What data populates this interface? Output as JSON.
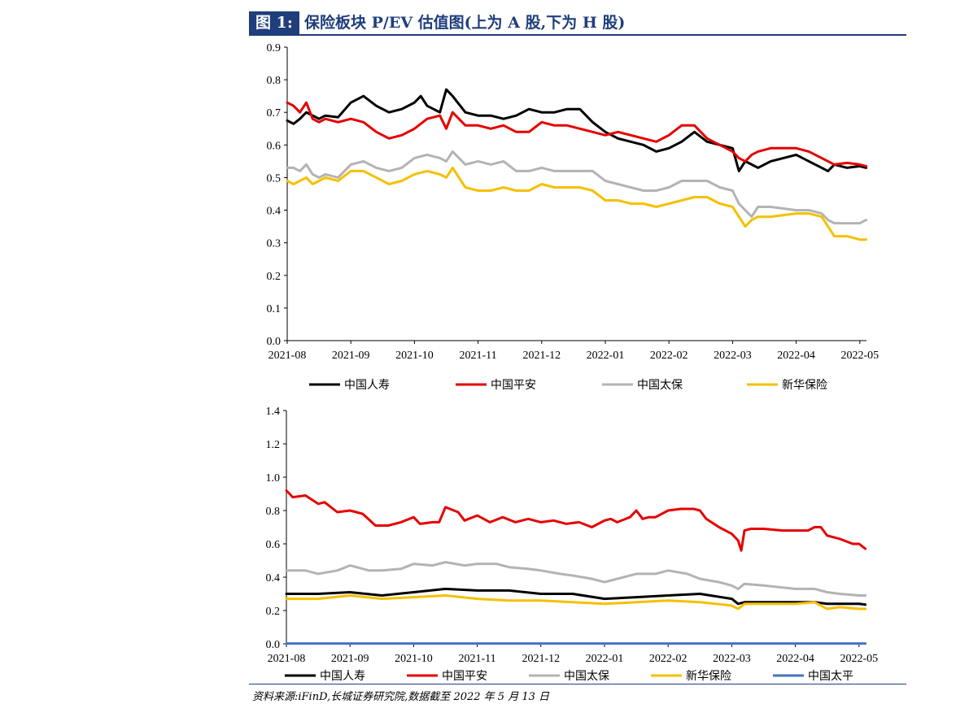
{
  "header": {
    "tag": "图 1:",
    "title": "保险板块 P/EV 估值图(上为 A 股,下为 H 股)"
  },
  "source": "资料来源:iFinD,长城证券研究院,数据截至 2022 年 5 月 13 日",
  "chart_data": [
    {
      "type": "line",
      "title": "",
      "xlabel": "",
      "ylabel": "",
      "x_ticks": [
        "2021-08",
        "2021-09",
        "2021-10",
        "2021-11",
        "2021-12",
        "2022-01",
        "2022-02",
        "2022-03",
        "2022-04",
        "2022-05"
      ],
      "y_ticks": [
        "0.0",
        "0.1",
        "0.2",
        "0.3",
        "0.4",
        "0.5",
        "0.6",
        "0.7",
        "0.8",
        "0.9"
      ],
      "ylim": [
        0,
        0.9
      ],
      "xlim": [
        0,
        9.1
      ],
      "grid": false,
      "legend": "bottom",
      "series": [
        {
          "name": "中国人寿",
          "color": "#000000",
          "x": [
            0,
            0.1,
            0.2,
            0.3,
            0.4,
            0.5,
            0.6,
            0.8,
            1.0,
            1.2,
            1.4,
            1.6,
            1.8,
            2.0,
            2.1,
            2.2,
            2.4,
            2.5,
            2.6,
            2.8,
            3.0,
            3.2,
            3.4,
            3.6,
            3.8,
            4.0,
            4.2,
            4.4,
            4.6,
            4.8,
            5.0,
            5.2,
            5.4,
            5.6,
            5.8,
            6.0,
            6.2,
            6.4,
            6.6,
            6.8,
            7.0,
            7.1,
            7.2,
            7.3,
            7.4,
            7.6,
            7.8,
            8.0,
            8.2,
            8.4,
            8.5,
            8.6,
            8.8,
            9.0,
            9.1
          ],
          "y": [
            0.675,
            0.665,
            0.68,
            0.7,
            0.69,
            0.68,
            0.69,
            0.685,
            0.73,
            0.75,
            0.72,
            0.7,
            0.71,
            0.73,
            0.75,
            0.72,
            0.7,
            0.77,
            0.75,
            0.7,
            0.69,
            0.69,
            0.68,
            0.69,
            0.71,
            0.7,
            0.7,
            0.71,
            0.71,
            0.67,
            0.64,
            0.62,
            0.61,
            0.6,
            0.58,
            0.59,
            0.61,
            0.64,
            0.61,
            0.6,
            0.59,
            0.52,
            0.55,
            0.54,
            0.53,
            0.55,
            0.56,
            0.57,
            0.55,
            0.53,
            0.52,
            0.54,
            0.53,
            0.535,
            0.53
          ]
        },
        {
          "name": "中国平安",
          "color": "#e60000",
          "x": [
            0,
            0.1,
            0.2,
            0.3,
            0.4,
            0.5,
            0.6,
            0.8,
            1.0,
            1.2,
            1.4,
            1.6,
            1.8,
            2.0,
            2.2,
            2.4,
            2.5,
            2.6,
            2.8,
            3.0,
            3.2,
            3.4,
            3.6,
            3.8,
            4.0,
            4.2,
            4.4,
            4.6,
            4.8,
            5.0,
            5.2,
            5.4,
            5.6,
            5.8,
            6.0,
            6.2,
            6.4,
            6.6,
            6.8,
            7.0,
            7.1,
            7.2,
            7.3,
            7.4,
            7.6,
            7.8,
            8.0,
            8.2,
            8.4,
            8.5,
            8.6,
            8.8,
            9.0,
            9.1
          ],
          "y": [
            0.73,
            0.72,
            0.7,
            0.73,
            0.68,
            0.67,
            0.68,
            0.67,
            0.68,
            0.67,
            0.64,
            0.62,
            0.63,
            0.65,
            0.68,
            0.69,
            0.65,
            0.7,
            0.66,
            0.66,
            0.65,
            0.66,
            0.64,
            0.64,
            0.67,
            0.66,
            0.66,
            0.65,
            0.64,
            0.63,
            0.64,
            0.63,
            0.62,
            0.61,
            0.63,
            0.66,
            0.66,
            0.62,
            0.6,
            0.58,
            0.56,
            0.55,
            0.57,
            0.58,
            0.59,
            0.59,
            0.59,
            0.58,
            0.56,
            0.55,
            0.54,
            0.545,
            0.54,
            0.535
          ]
        },
        {
          "name": "中国太保",
          "color": "#b3b3b3",
          "x": [
            0,
            0.1,
            0.2,
            0.3,
            0.4,
            0.5,
            0.6,
            0.8,
            1.0,
            1.2,
            1.4,
            1.6,
            1.8,
            2.0,
            2.2,
            2.4,
            2.5,
            2.6,
            2.8,
            3.0,
            3.2,
            3.4,
            3.6,
            3.8,
            4.0,
            4.2,
            4.4,
            4.6,
            4.8,
            5.0,
            5.2,
            5.4,
            5.6,
            5.8,
            6.0,
            6.2,
            6.4,
            6.6,
            6.8,
            7.0,
            7.1,
            7.2,
            7.3,
            7.4,
            7.6,
            7.8,
            8.0,
            8.2,
            8.4,
            8.5,
            8.6,
            8.8,
            9.0,
            9.1
          ],
          "y": [
            0.53,
            0.53,
            0.52,
            0.54,
            0.51,
            0.5,
            0.51,
            0.5,
            0.54,
            0.55,
            0.53,
            0.52,
            0.53,
            0.56,
            0.57,
            0.56,
            0.55,
            0.58,
            0.54,
            0.55,
            0.54,
            0.55,
            0.52,
            0.52,
            0.53,
            0.52,
            0.52,
            0.52,
            0.52,
            0.49,
            0.48,
            0.47,
            0.46,
            0.46,
            0.47,
            0.49,
            0.49,
            0.49,
            0.47,
            0.46,
            0.42,
            0.4,
            0.38,
            0.41,
            0.41,
            0.405,
            0.4,
            0.4,
            0.39,
            0.37,
            0.36,
            0.36,
            0.36,
            0.37
          ]
        },
        {
          "name": "新华保险",
          "color": "#f5c000",
          "x": [
            0,
            0.1,
            0.2,
            0.3,
            0.4,
            0.5,
            0.6,
            0.8,
            1.0,
            1.2,
            1.4,
            1.6,
            1.8,
            2.0,
            2.2,
            2.4,
            2.5,
            2.6,
            2.8,
            3.0,
            3.2,
            3.4,
            3.6,
            3.8,
            4.0,
            4.2,
            4.4,
            4.6,
            4.8,
            5.0,
            5.2,
            5.4,
            5.6,
            5.8,
            6.0,
            6.2,
            6.4,
            6.6,
            6.8,
            7.0,
            7.1,
            7.2,
            7.3,
            7.4,
            7.6,
            7.8,
            8.0,
            8.2,
            8.4,
            8.5,
            8.6,
            8.8,
            9.0,
            9.1
          ],
          "y": [
            0.49,
            0.48,
            0.49,
            0.5,
            0.48,
            0.49,
            0.5,
            0.49,
            0.52,
            0.52,
            0.5,
            0.48,
            0.49,
            0.51,
            0.52,
            0.51,
            0.5,
            0.53,
            0.47,
            0.46,
            0.46,
            0.47,
            0.46,
            0.46,
            0.48,
            0.47,
            0.47,
            0.47,
            0.46,
            0.43,
            0.43,
            0.42,
            0.42,
            0.41,
            0.42,
            0.43,
            0.44,
            0.44,
            0.42,
            0.41,
            0.38,
            0.35,
            0.37,
            0.38,
            0.38,
            0.385,
            0.39,
            0.39,
            0.38,
            0.35,
            0.32,
            0.32,
            0.31,
            0.31
          ]
        }
      ]
    },
    {
      "type": "line",
      "title": "",
      "xlabel": "",
      "ylabel": "",
      "x_ticks": [
        "2021-08",
        "2021-09",
        "2021-10",
        "2021-11",
        "2021-12",
        "2022-01",
        "2022-02",
        "2022-03",
        "2022-04",
        "2022-05"
      ],
      "y_ticks": [
        "0.0",
        "0.2",
        "0.4",
        "0.6",
        "0.8",
        "1.0",
        "1.2",
        "1.4"
      ],
      "ylim": [
        0,
        1.4
      ],
      "xlim": [
        0,
        9.1
      ],
      "grid": false,
      "legend": "bottom",
      "series": [
        {
          "name": "中国人寿",
          "color": "#000000",
          "x": [
            0,
            0.5,
            1.0,
            1.5,
            2.0,
            2.5,
            3.0,
            3.5,
            4.0,
            4.5,
            5.0,
            5.5,
            6.0,
            6.5,
            7.0,
            7.1,
            7.2,
            7.5,
            8.0,
            8.3,
            8.5,
            8.7,
            9.0,
            9.1
          ],
          "y": [
            0.3,
            0.3,
            0.31,
            0.29,
            0.31,
            0.33,
            0.32,
            0.32,
            0.3,
            0.3,
            0.27,
            0.28,
            0.29,
            0.3,
            0.27,
            0.24,
            0.25,
            0.25,
            0.25,
            0.25,
            0.24,
            0.24,
            0.24,
            0.235
          ]
        },
        {
          "name": "中国平安",
          "color": "#e60000",
          "x": [
            0,
            0.1,
            0.3,
            0.5,
            0.6,
            0.8,
            1.0,
            1.2,
            1.4,
            1.6,
            1.8,
            2.0,
            2.1,
            2.3,
            2.4,
            2.5,
            2.7,
            2.8,
            3.0,
            3.2,
            3.4,
            3.6,
            3.8,
            4.0,
            4.2,
            4.4,
            4.6,
            4.8,
            5.0,
            5.1,
            5.2,
            5.4,
            5.5,
            5.6,
            5.7,
            5.8,
            6.0,
            6.2,
            6.4,
            6.5,
            6.6,
            6.8,
            7.0,
            7.1,
            7.15,
            7.2,
            7.3,
            7.5,
            7.8,
            8.0,
            8.2,
            8.3,
            8.4,
            8.5,
            8.7,
            8.9,
            9.0,
            9.1
          ],
          "y": [
            0.92,
            0.88,
            0.89,
            0.84,
            0.85,
            0.79,
            0.8,
            0.78,
            0.71,
            0.71,
            0.73,
            0.76,
            0.72,
            0.73,
            0.73,
            0.82,
            0.79,
            0.74,
            0.77,
            0.73,
            0.76,
            0.73,
            0.75,
            0.73,
            0.74,
            0.72,
            0.73,
            0.7,
            0.74,
            0.75,
            0.73,
            0.76,
            0.8,
            0.75,
            0.76,
            0.76,
            0.8,
            0.81,
            0.81,
            0.8,
            0.75,
            0.7,
            0.66,
            0.62,
            0.56,
            0.68,
            0.69,
            0.69,
            0.68,
            0.68,
            0.68,
            0.7,
            0.7,
            0.65,
            0.63,
            0.6,
            0.6,
            0.57
          ]
        },
        {
          "name": "中国太保",
          "color": "#b3b3b3",
          "x": [
            0,
            0.3,
            0.5,
            0.8,
            1.0,
            1.3,
            1.5,
            1.8,
            2.0,
            2.3,
            2.5,
            2.8,
            3.0,
            3.3,
            3.5,
            3.8,
            4.0,
            4.3,
            4.5,
            4.8,
            5.0,
            5.3,
            5.5,
            5.8,
            6.0,
            6.3,
            6.5,
            6.8,
            7.0,
            7.1,
            7.2,
            7.5,
            8.0,
            8.3,
            8.5,
            8.7,
            9.0,
            9.1
          ],
          "y": [
            0.44,
            0.44,
            0.42,
            0.44,
            0.47,
            0.44,
            0.44,
            0.45,
            0.48,
            0.47,
            0.49,
            0.47,
            0.48,
            0.48,
            0.46,
            0.45,
            0.44,
            0.42,
            0.41,
            0.39,
            0.37,
            0.4,
            0.42,
            0.42,
            0.44,
            0.42,
            0.39,
            0.37,
            0.35,
            0.33,
            0.36,
            0.35,
            0.33,
            0.33,
            0.31,
            0.3,
            0.29,
            0.29
          ]
        },
        {
          "name": "新华保险",
          "color": "#f5c000",
          "x": [
            0,
            0.5,
            1.0,
            1.5,
            2.0,
            2.5,
            3.0,
            3.5,
            4.0,
            4.5,
            5.0,
            5.5,
            6.0,
            6.5,
            7.0,
            7.1,
            7.2,
            7.5,
            8.0,
            8.3,
            8.5,
            8.7,
            9.0,
            9.1
          ],
          "y": [
            0.27,
            0.27,
            0.29,
            0.27,
            0.28,
            0.29,
            0.27,
            0.26,
            0.26,
            0.25,
            0.24,
            0.25,
            0.26,
            0.25,
            0.23,
            0.21,
            0.24,
            0.24,
            0.24,
            0.25,
            0.21,
            0.22,
            0.21,
            0.21
          ]
        },
        {
          "name": "中国太平",
          "color": "#4472c4",
          "x": [
            0,
            9.1
          ],
          "y": [
            0.002,
            0.002
          ]
        }
      ]
    }
  ]
}
